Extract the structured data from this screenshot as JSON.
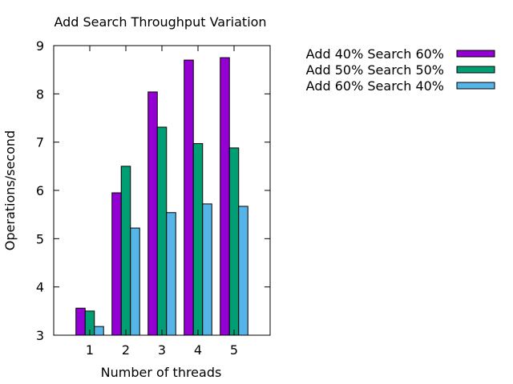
{
  "chart_data": {
    "type": "bar",
    "title": "Add Search Throughput Variation",
    "xlabel": "Number of threads",
    "ylabel": "Operations/second",
    "categories": [
      "1",
      "2",
      "3",
      "4",
      "5"
    ],
    "ylim": [
      3,
      9
    ],
    "yticks": [
      3,
      4,
      5,
      6,
      7,
      8,
      9
    ],
    "grid": false,
    "legend_position": "top-right outside",
    "series": [
      {
        "name": "Add 40% Search 60%",
        "color": "#9400d3",
        "values": [
          3.56,
          5.95,
          8.04,
          8.7,
          8.75
        ]
      },
      {
        "name": "Add 50% Search 50%",
        "color": "#009e73",
        "values": [
          3.5,
          6.5,
          7.31,
          6.97,
          6.88
        ]
      },
      {
        "name": "Add 60% Search 40%",
        "color": "#56b4e9",
        "values": [
          3.18,
          5.22,
          5.54,
          5.72,
          5.67
        ]
      }
    ]
  }
}
